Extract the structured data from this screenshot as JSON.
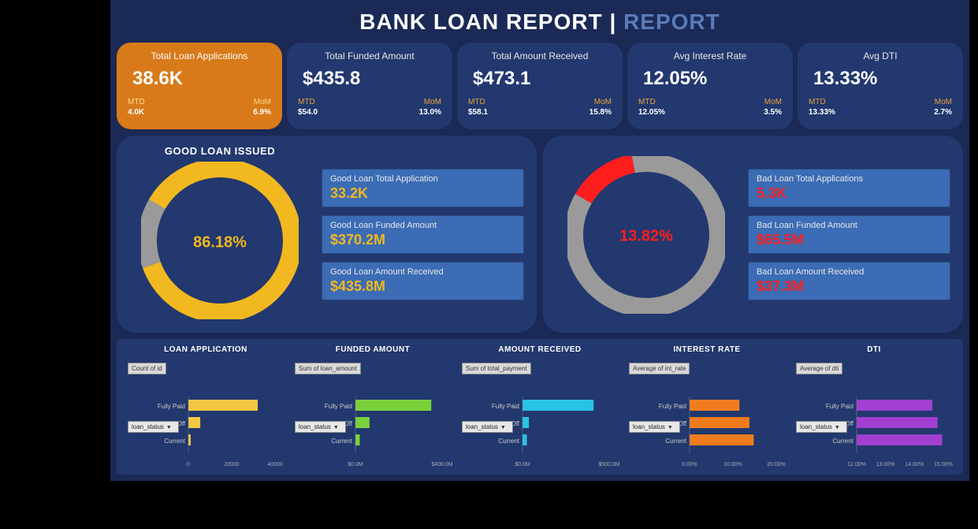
{
  "title": {
    "main": "BANK LOAN REPORT | ",
    "sub": "REPORT"
  },
  "colors": {
    "bg": "#1a2955",
    "card": "#22386e",
    "highlight": "#d87a1a",
    "metric_box": "#3b6cb5",
    "good_ring": "#f2b81f",
    "good_rest": "#9a9a9a",
    "bad_ring": "#ff1e1e",
    "bad_rest": "#9a9a9a",
    "good_center_text": "#f2b81f",
    "bad_center_text": "#ff1e1e"
  },
  "kpis": [
    {
      "title": "Total Loan Applications",
      "value": "38.6K",
      "mtd_lbl": "MTD",
      "mtd": "4.0K",
      "mom_lbl": "MoM",
      "mom": "6.9%",
      "highlight": true
    },
    {
      "title": "Total Funded Amount",
      "value": "$435.8",
      "mtd_lbl": "MTD",
      "mtd": "$54.0",
      "mom_lbl": "MoM",
      "mom": "13.0%",
      "highlight": false
    },
    {
      "title": "Total Amount Received",
      "value": "$473.1",
      "mtd_lbl": "MTD",
      "mtd": "$58.1",
      "mom_lbl": "MoM",
      "mom": "15.8%",
      "highlight": false
    },
    {
      "title": "Avg Interest Rate",
      "value": "12.05%",
      "mtd_lbl": "MTD",
      "mtd": "12.05%",
      "mom_lbl": "MoM",
      "mom": "3.5%",
      "highlight": false
    },
    {
      "title": "Avg DTI",
      "value": "13.33%",
      "mtd_lbl": "MTD",
      "mtd": "13.33%",
      "mom_lbl": "MoM",
      "mom": "2.7%",
      "highlight": false
    }
  ],
  "good": {
    "title": "GOOD LOAN ISSUED",
    "donut": {
      "percent": 86.18,
      "label": "86.18%",
      "ring_color": "#f2b81f",
      "rest_color": "#9a9a9a",
      "thickness": 24,
      "radius": 92
    },
    "metrics": [
      {
        "lbl": "Good Loan  Total Application",
        "val": "33.2K",
        "val_color": "#f2b81f"
      },
      {
        "lbl": "Good Loan  Funded Amount",
        "val": "$370.2M",
        "val_color": "#f2b81f"
      },
      {
        "lbl": "Good Loan  Amount Received",
        "val": "$435.8M",
        "val_color": "#f2b81f"
      }
    ]
  },
  "bad": {
    "title": "",
    "donut": {
      "percent": 13.82,
      "label": "13.82%",
      "ring_color": "#ff1e1e",
      "rest_color": "#9a9a9a",
      "thickness": 24,
      "radius": 92
    },
    "metrics": [
      {
        "lbl": "Bad Loan Total Applications",
        "val": "5.3K",
        "val_color": "#ff1e1e"
      },
      {
        "lbl": "Bad Loan Funded Amount",
        "val": "$65.5M",
        "val_color": "#ff1e1e"
      },
      {
        "lbl": "Bad Loan Amount Received",
        "val": "$37.3M",
        "val_color": "#ff1e1e"
      }
    ]
  },
  "bottom_charts": [
    {
      "title": "LOAN APPLICATION",
      "field": "Count of id",
      "dropdown": "loan_status",
      "bar_color": "#f2c744",
      "categories": [
        "Fully Paid",
        "Charged Off",
        "Current"
      ],
      "values": [
        32000,
        5500,
        1100
      ],
      "xmax": 40000,
      "xticks": [
        "0",
        "20000",
        "40000"
      ]
    },
    {
      "title": "FUNDED AMOUNT",
      "field": "Sum of loan_amount",
      "dropdown": "loan_status",
      "bar_color": "#7bd13c",
      "categories": [
        "Fully Paid",
        "Charged Off",
        "Current"
      ],
      "values": [
        350,
        65,
        20
      ],
      "xmax": 400,
      "xticks": [
        "$0.0M",
        "",
        "$400.0M"
      ]
    },
    {
      "title": "AMOUNT RECEIVED",
      "field": "Sum of total_payment",
      "dropdown": "loan_status",
      "bar_color": "#29c3e6",
      "categories": [
        "Fully Paid",
        "Charged Off",
        "Current"
      ],
      "values": [
        410,
        37,
        25
      ],
      "xmax": 500,
      "xticks": [
        "$0.0M",
        "",
        "$500.0M"
      ]
    },
    {
      "title": "INTEREST RATE",
      "field": "Average of int_rate",
      "dropdown": "loan_status",
      "bar_color": "#f07b1f",
      "categories": [
        "Fully Paid",
        "Charged Off",
        "Current"
      ],
      "values": [
        11.5,
        13.8,
        14.8
      ],
      "xmax": 20,
      "xticks": [
        "0.00%",
        "10.00%",
        "20.00%"
      ]
    },
    {
      "title": "DTI",
      "field": "Average of dti",
      "dropdown": "loan_status",
      "bar_color": "#a13fd1",
      "categories": [
        "Fully Paid",
        "Charged Off",
        "Current"
      ],
      "values": [
        13.1,
        14.0,
        14.8
      ],
      "xmax": 15,
      "xticks": [
        "12.00%",
        "13.00%",
        "14.00%",
        "15.00%"
      ]
    }
  ]
}
